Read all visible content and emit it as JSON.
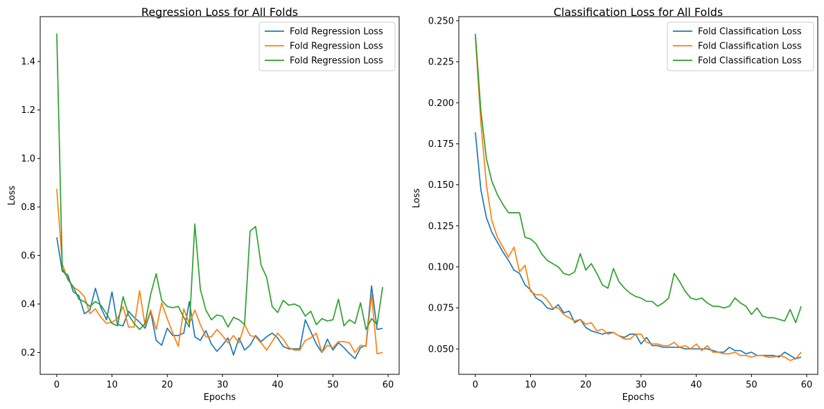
{
  "chart_data": [
    {
      "type": "line",
      "title": "Regression Loss for All Folds",
      "xlabel": "Epochs",
      "ylabel": "Loss",
      "xlim": [
        -3,
        62
      ],
      "ylim": [
        0.11,
        1.585
      ],
      "xticks": [
        0,
        10,
        20,
        30,
        40,
        50,
        60
      ],
      "yticks": [
        0.2,
        0.4,
        0.6,
        0.8,
        1.0,
        1.2,
        1.4
      ],
      "ytick_labels": [
        "0.2",
        "0.4",
        "0.6",
        "0.8",
        "1.0",
        "1.2",
        "1.4"
      ],
      "legend_position": "top-right",
      "series": [
        {
          "name": "Fold Regression Loss",
          "color": "#1f77b4",
          "values": [
            0.675,
            0.535,
            0.52,
            0.45,
            0.435,
            0.36,
            0.375,
            0.465,
            0.385,
            0.335,
            0.45,
            0.315,
            0.31,
            0.37,
            0.345,
            0.325,
            0.3,
            0.37,
            0.25,
            0.23,
            0.3,
            0.27,
            0.27,
            0.28,
            0.41,
            0.265,
            0.25,
            0.29,
            0.235,
            0.205,
            0.23,
            0.26,
            0.19,
            0.26,
            0.21,
            0.23,
            0.27,
            0.245,
            0.265,
            0.28,
            0.26,
            0.225,
            0.215,
            0.215,
            0.215,
            0.335,
            0.285,
            0.235,
            0.2,
            0.255,
            0.21,
            0.24,
            0.22,
            0.195,
            0.175,
            0.22,
            0.23,
            0.475,
            0.295,
            0.3
          ]
        },
        {
          "name": "Fold Regression Loss",
          "color": "#ff7f0e",
          "values": [
            0.875,
            0.565,
            0.5,
            0.47,
            0.455,
            0.43,
            0.36,
            0.38,
            0.345,
            0.32,
            0.325,
            0.34,
            0.39,
            0.305,
            0.305,
            0.455,
            0.31,
            0.375,
            0.295,
            0.405,
            0.34,
            0.28,
            0.225,
            0.38,
            0.32,
            0.375,
            0.315,
            0.265,
            0.265,
            0.295,
            0.27,
            0.24,
            0.27,
            0.24,
            0.315,
            0.27,
            0.265,
            0.24,
            0.21,
            0.245,
            0.28,
            0.255,
            0.22,
            0.21,
            0.21,
            0.25,
            0.26,
            0.28,
            0.2,
            0.23,
            0.22,
            0.245,
            0.245,
            0.24,
            0.2,
            0.23,
            0.225,
            0.44,
            0.195,
            0.2
          ]
        },
        {
          "name": "Fold Regression Loss",
          "color": "#2ca02c",
          "values": [
            1.515,
            0.545,
            0.505,
            0.47,
            0.42,
            0.41,
            0.39,
            0.41,
            0.395,
            0.36,
            0.32,
            0.31,
            0.43,
            0.355,
            0.32,
            0.295,
            0.32,
            0.44,
            0.525,
            0.415,
            0.39,
            0.385,
            0.39,
            0.345,
            0.305,
            0.73,
            0.46,
            0.375,
            0.335,
            0.355,
            0.35,
            0.305,
            0.345,
            0.335,
            0.315,
            0.7,
            0.72,
            0.56,
            0.51,
            0.39,
            0.365,
            0.415,
            0.395,
            0.4,
            0.39,
            0.35,
            0.37,
            0.315,
            0.34,
            0.33,
            0.335,
            0.42,
            0.31,
            0.335,
            0.32,
            0.405,
            0.295,
            0.34,
            0.315,
            0.47
          ]
        }
      ]
    },
    {
      "type": "line",
      "title": "Classification Loss for All Folds",
      "xlabel": "Epochs",
      "ylabel": "Loss",
      "xlim": [
        -3,
        62
      ],
      "ylim": [
        0.0345,
        0.2525
      ],
      "xticks": [
        0,
        10,
        20,
        30,
        40,
        50,
        60
      ],
      "yticks": [
        0.05,
        0.075,
        0.1,
        0.125,
        0.15,
        0.175,
        0.2,
        0.225,
        0.25
      ],
      "ytick_labels": [
        "0.050",
        "0.075",
        "0.100",
        "0.125",
        "0.150",
        "0.175",
        "0.200",
        "0.225",
        "0.250"
      ],
      "legend_position": "top-right",
      "series": [
        {
          "name": "Fold Classification Loss",
          "color": "#1f77b4",
          "values": [
            0.182,
            0.147,
            0.13,
            0.121,
            0.115,
            0.109,
            0.104,
            0.098,
            0.096,
            0.089,
            0.086,
            0.081,
            0.079,
            0.075,
            0.074,
            0.077,
            0.072,
            0.073,
            0.066,
            0.068,
            0.063,
            0.061,
            0.06,
            0.059,
            0.06,
            0.06,
            0.058,
            0.057,
            0.059,
            0.059,
            0.053,
            0.057,
            0.052,
            0.052,
            0.051,
            0.051,
            0.051,
            0.051,
            0.05,
            0.05,
            0.05,
            0.05,
            0.05,
            0.049,
            0.048,
            0.048,
            0.051,
            0.049,
            0.049,
            0.047,
            0.048,
            0.046,
            0.046,
            0.046,
            0.046,
            0.045,
            0.048,
            0.046,
            0.044,
            0.045
          ]
        },
        {
          "name": "Fold Classification Loss",
          "color": "#ff7f0e",
          "values": [
            0.24,
            0.188,
            0.15,
            0.128,
            0.118,
            0.112,
            0.106,
            0.112,
            0.097,
            0.101,
            0.085,
            0.083,
            0.083,
            0.08,
            0.075,
            0.075,
            0.071,
            0.069,
            0.067,
            0.068,
            0.065,
            0.066,
            0.061,
            0.062,
            0.059,
            0.06,
            0.058,
            0.056,
            0.056,
            0.059,
            0.059,
            0.054,
            0.053,
            0.053,
            0.052,
            0.052,
            0.054,
            0.051,
            0.052,
            0.05,
            0.053,
            0.049,
            0.052,
            0.048,
            0.048,
            0.047,
            0.047,
            0.048,
            0.046,
            0.046,
            0.045,
            0.046,
            0.046,
            0.045,
            0.045,
            0.046,
            0.045,
            0.043,
            0.044,
            0.048
          ]
        },
        {
          "name": "Fold Classification Loss",
          "color": "#2ca02c",
          "values": [
            0.242,
            0.195,
            0.166,
            0.152,
            0.144,
            0.138,
            0.133,
            0.133,
            0.133,
            0.118,
            0.117,
            0.114,
            0.108,
            0.104,
            0.102,
            0.1,
            0.096,
            0.095,
            0.097,
            0.108,
            0.098,
            0.102,
            0.096,
            0.089,
            0.087,
            0.099,
            0.091,
            0.087,
            0.084,
            0.082,
            0.081,
            0.079,
            0.079,
            0.076,
            0.078,
            0.081,
            0.096,
            0.091,
            0.085,
            0.081,
            0.08,
            0.081,
            0.078,
            0.076,
            0.076,
            0.075,
            0.076,
            0.081,
            0.078,
            0.076,
            0.071,
            0.075,
            0.07,
            0.069,
            0.069,
            0.068,
            0.067,
            0.074,
            0.066,
            0.076
          ]
        }
      ]
    }
  ]
}
